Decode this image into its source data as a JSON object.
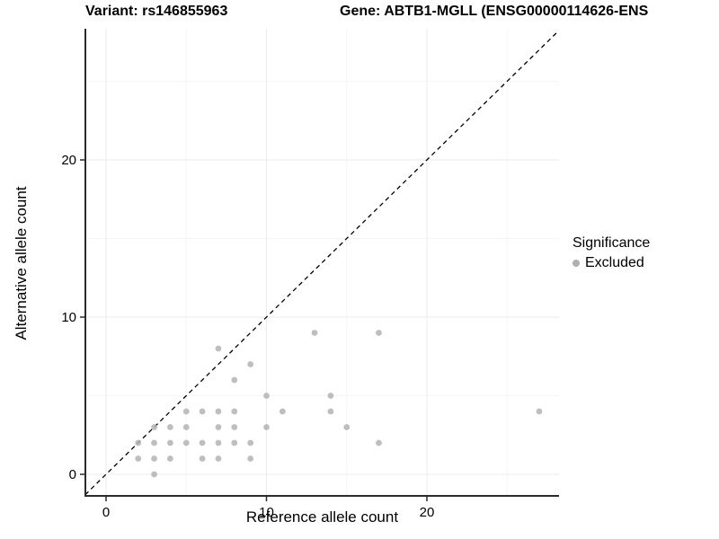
{
  "titles": {
    "variant": "Variant: rs146855963",
    "gene": "Gene: ABTB1-MGLL (ENSG00000114626-ENS"
  },
  "legend": {
    "title": "Significance",
    "items": [
      {
        "label": "Excluded",
        "color": "#b0b0b0"
      }
    ]
  },
  "chart_data": {
    "type": "scatter",
    "xlabel": "Reference allele count",
    "ylabel": "Alternative allele count",
    "xlim": [
      -1.3,
      28.2
    ],
    "ylim": [
      -1.5,
      28.3
    ],
    "x_ticks": [
      0,
      10,
      20
    ],
    "y_ticks": [
      0,
      10,
      20
    ],
    "x_minor_ticks": [
      5,
      15,
      25
    ],
    "y_minor_ticks": [
      5,
      15,
      25
    ],
    "grid": true,
    "legend_position": "right",
    "identity_line": {
      "style": "dashed",
      "color": "#000000",
      "from": -1.3,
      "to": 28.2
    },
    "series": [
      {
        "name": "Excluded",
        "color": "#b3b3b3",
        "points": [
          [
            2,
            1
          ],
          [
            2,
            2
          ],
          [
            3,
            0
          ],
          [
            3,
            1
          ],
          [
            3,
            2
          ],
          [
            3,
            3
          ],
          [
            4,
            1
          ],
          [
            4,
            2
          ],
          [
            4,
            3
          ],
          [
            5,
            2
          ],
          [
            5,
            3
          ],
          [
            5,
            4
          ],
          [
            6,
            1
          ],
          [
            6,
            2
          ],
          [
            6,
            4
          ],
          [
            7,
            1
          ],
          [
            7,
            2
          ],
          [
            7,
            3
          ],
          [
            7,
            4
          ],
          [
            7,
            8
          ],
          [
            8,
            2
          ],
          [
            8,
            3
          ],
          [
            8,
            4
          ],
          [
            8,
            6
          ],
          [
            9,
            1
          ],
          [
            9,
            2
          ],
          [
            9,
            7
          ],
          [
            10,
            3
          ],
          [
            10,
            5
          ],
          [
            11,
            4
          ],
          [
            13,
            9
          ],
          [
            14,
            4
          ],
          [
            14,
            5
          ],
          [
            15,
            3
          ],
          [
            17,
            2
          ],
          [
            17,
            9
          ],
          [
            27,
            4
          ]
        ]
      }
    ]
  },
  "colors": {
    "background": "#ffffff",
    "grid_major": "#ebebeb",
    "grid_minor": "#f5f5f5",
    "axis": "#2b2b2b",
    "tick_label": "#000000",
    "point": "#b3b3b3"
  }
}
